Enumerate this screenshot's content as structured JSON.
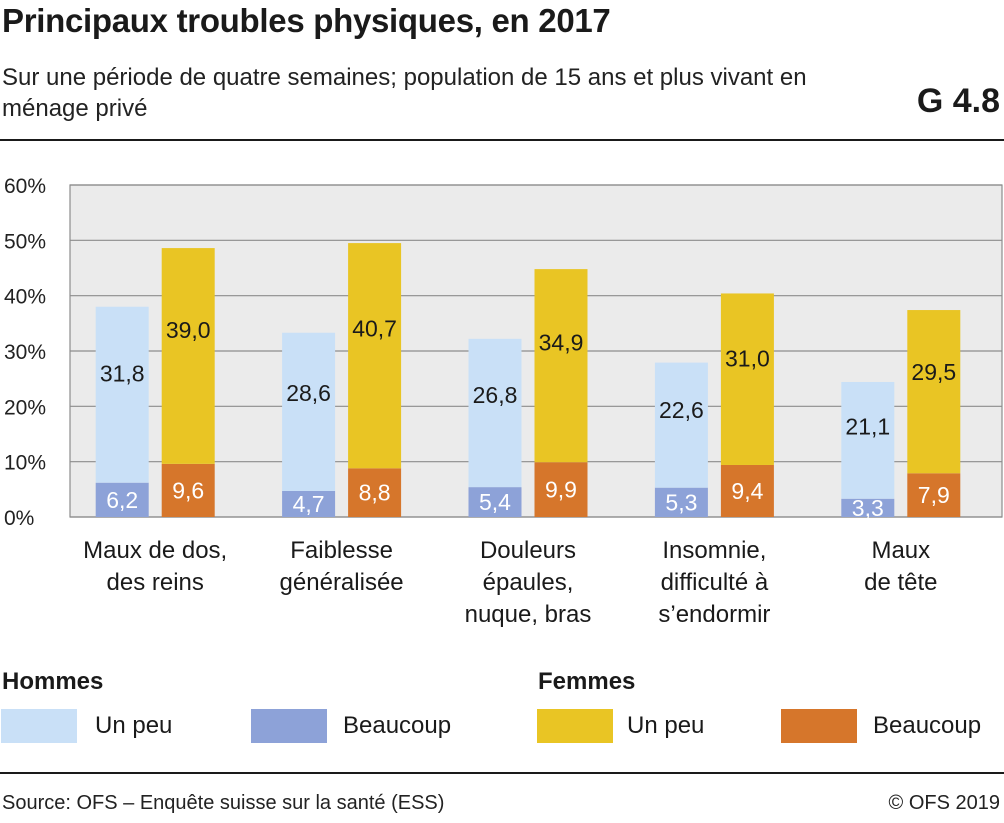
{
  "header": {
    "title": "Principaux troubles physiques, en 2017",
    "subtitle": "Sur une période de quatre semaines; population de 15 ans et plus vivant en ménage privé",
    "code": "G 4.8"
  },
  "legend": {
    "men_heading": "Hommes",
    "women_heading": "Femmes",
    "men_little": "Un peu",
    "men_lot": "Beaucoup",
    "women_little": "Un peu",
    "women_lot": "Beaucoup"
  },
  "footer": {
    "source": "Source: OFS – Enquête suisse sur la santé (ESS)",
    "copyright": "© OFS 2019"
  },
  "colors": {
    "men_little": "#c9e0f7",
    "men_lot": "#8da2d8",
    "women_little": "#e9c524",
    "women_lot": "#d6762b",
    "plot_bg": "#ebebeb"
  },
  "chart_data": {
    "type": "bar",
    "stacked": true,
    "categories": [
      [
        "Maux de dos,",
        "des reins"
      ],
      [
        "Faiblesse",
        "généralisée"
      ],
      [
        "Douleurs",
        "épaules,",
        "nuque, bras"
      ],
      [
        "Insomnie,",
        "difficulté à",
        "s’endormir"
      ],
      [
        "Maux",
        "de tête"
      ]
    ],
    "groups": [
      {
        "name": "Hommes",
        "segments": [
          {
            "name": "Beaucoup",
            "values": [
              6.2,
              4.7,
              5.4,
              5.3,
              3.3
            ],
            "labels": [
              "6,2",
              "4,7",
              "5,4",
              "5,3",
              "3,3"
            ]
          },
          {
            "name": "Un peu",
            "values": [
              31.8,
              28.6,
              26.8,
              22.6,
              21.1
            ],
            "labels": [
              "31,8",
              "28,6",
              "26,8",
              "22,6",
              "21,1"
            ]
          }
        ]
      },
      {
        "name": "Femmes",
        "segments": [
          {
            "name": "Beaucoup",
            "values": [
              9.6,
              8.8,
              9.9,
              9.4,
              7.9
            ],
            "labels": [
              "9,6",
              "8,8",
              "9,9",
              "9,4",
              "7,9"
            ]
          },
          {
            "name": "Un peu",
            "values": [
              39.0,
              40.7,
              34.9,
              31.0,
              29.5
            ],
            "labels": [
              "39,0",
              "40,7",
              "34,9",
              "31,0",
              "29,5"
            ]
          }
        ]
      }
    ],
    "yticks": [
      "0%",
      "10%",
      "20%",
      "30%",
      "40%",
      "50%",
      "60%"
    ],
    "ylim": [
      0,
      60
    ],
    "grid": true
  }
}
